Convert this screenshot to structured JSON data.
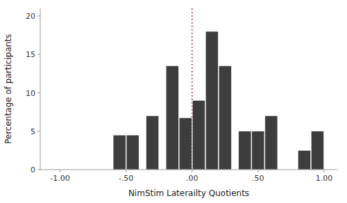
{
  "chart_data": {
    "type": "bar",
    "x": [
      -0.55,
      -0.45,
      -0.3,
      -0.15,
      -0.05,
      0.05,
      0.15,
      0.25,
      0.4,
      0.5,
      0.6,
      0.85,
      0.95
    ],
    "values": [
      4.5,
      4.5,
      7.0,
      13.5,
      6.75,
      9.0,
      18.0,
      13.5,
      5.0,
      5.0,
      7.0,
      2.5,
      5.0
    ],
    "color": "#3d3d3d",
    "reference_lines": [
      {
        "x": 0.0,
        "color": "#b03040",
        "line_style": "dotted"
      }
    ],
    "xlim": [
      -1.15,
      1.1
    ],
    "ylim": [
      0,
      21
    ],
    "xticks": [
      {
        "value": -1.0,
        "label": "-1.00"
      },
      {
        "value": -0.5,
        "label": "-.50"
      },
      {
        "value": 0.0,
        "label": ".00"
      },
      {
        "value": 0.5,
        "label": ".50"
      },
      {
        "value": 1.0,
        "label": "1.00"
      }
    ],
    "yticks": [
      0,
      5,
      10,
      15,
      20
    ],
    "xlabel": "NimStim Laterailty Quotients",
    "ylabel": "Percentage of participants",
    "grid": false
  }
}
